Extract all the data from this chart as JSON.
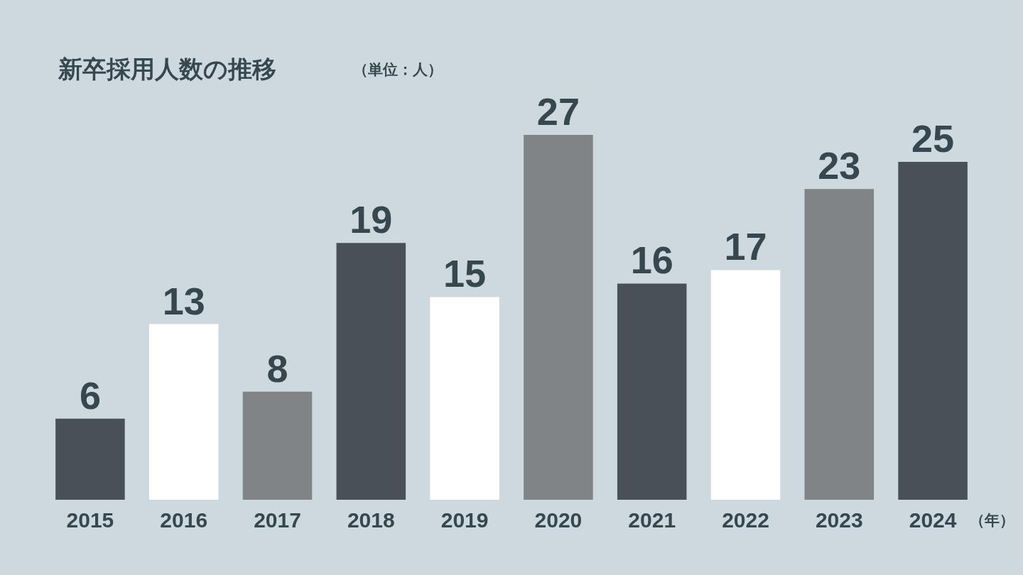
{
  "chart_data": {
    "type": "bar",
    "title": "新卒採用人数の推移",
    "subtitle": "（単位：人）",
    "xlabel": "（年）",
    "categories": [
      "2015",
      "2016",
      "2017",
      "2018",
      "2019",
      "2020",
      "2021",
      "2022",
      "2023",
      "2024"
    ],
    "values": [
      6,
      13,
      8,
      19,
      15,
      27,
      16,
      17,
      23,
      25
    ],
    "colors": [
      "#4a5058",
      "#ffffff",
      "#808487",
      "#4a5058",
      "#ffffff",
      "#808487",
      "#4a5058",
      "#ffffff",
      "#808487",
      "#4a5058"
    ],
    "tick_labels": "x",
    "data_labels": true
  }
}
